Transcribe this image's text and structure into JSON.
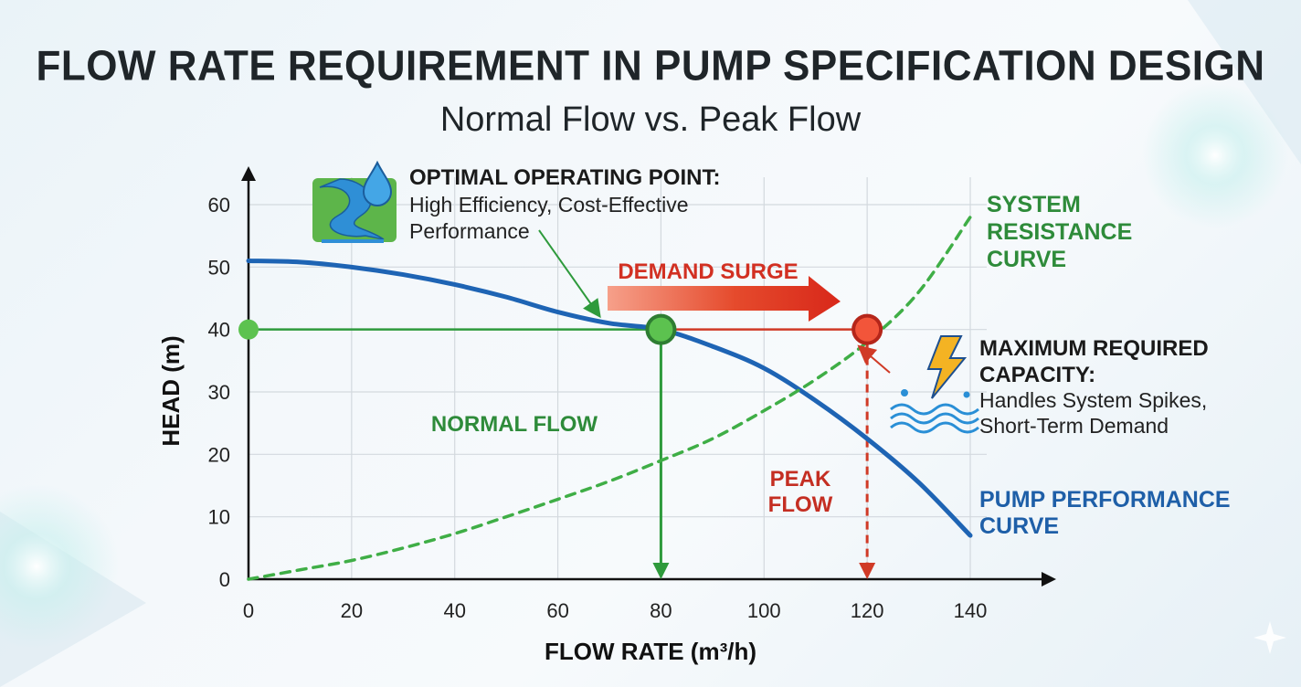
{
  "chart_data": {
    "type": "line",
    "title": "FLOW RATE REQUIREMENT IN PUMP SPECIFICATION DESIGN",
    "subtitle": "Normal Flow vs. Peak Flow",
    "xlabel": "FLOW RATE (m³/h)",
    "ylabel": "HEAD (m)",
    "xlim": [
      0,
      140
    ],
    "ylim": [
      0,
      60
    ],
    "xticks": [
      0,
      20,
      40,
      60,
      80,
      100,
      120,
      140
    ],
    "yticks": [
      0,
      10,
      20,
      30,
      40,
      50,
      60
    ],
    "grid": true,
    "series": [
      {
        "name": "PUMP PERFORMANCE CURVE",
        "color": "#1e64b4",
        "style": "solid",
        "x": [
          0,
          10,
          20,
          30,
          40,
          50,
          60,
          70,
          80,
          90,
          100,
          110,
          120,
          130,
          140
        ],
        "y": [
          51,
          50.8,
          50,
          48.8,
          47.2,
          45.2,
          42.8,
          41,
          40,
          37.3,
          33.8,
          28.6,
          22.5,
          15.5,
          7
        ]
      },
      {
        "name": "SYSTEM RESISTANCE CURVE",
        "color": "#3fae46",
        "style": "dashed",
        "x": [
          0,
          10,
          20,
          30,
          40,
          50,
          60,
          70,
          80,
          90,
          100,
          110,
          120,
          130,
          140
        ],
        "y": [
          0,
          1.5,
          3,
          5,
          7.3,
          10,
          12.8,
          15.7,
          19,
          22.5,
          27,
          32,
          38,
          46,
          58
        ]
      }
    ],
    "points": {
      "normal": {
        "x": 80,
        "y": 40,
        "color": "#3fae46"
      },
      "peak": {
        "x": 120,
        "y": 40,
        "color": "#e04a2a"
      },
      "head_axis": {
        "x": 0,
        "y": 40
      }
    },
    "annotations": {
      "optimal_title": "OPTIMAL OPERATING POINT:",
      "optimal_line1": "High Efficiency, Cost-Effective",
      "optimal_line2": "Performance",
      "demand_surge": "DEMAND SURGE",
      "normal_flow": "NORMAL FLOW",
      "peak_flow_1": "PEAK",
      "peak_flow_2": "FLOW",
      "max_title_1": "MAXIMUM REQUIRED",
      "max_title_2": "CAPACITY:",
      "max_line1": "Handles System Spikes,",
      "max_line2": "Short-Term Demand",
      "system_label_1": "SYSTEM",
      "system_label_2": "RESISTANCE",
      "system_label_3": "CURVE",
      "pump_label_1": "PUMP PERFORMANCE",
      "pump_label_2": "CURVE"
    },
    "colors": {
      "pump": "#1e64b4",
      "system": "#3fae46",
      "normal": "#2e9a3c",
      "peak": "#d03a26",
      "text_green": "#2e8b3a",
      "text_blue": "#1e5fa8",
      "text_red": "#c42e22"
    }
  }
}
